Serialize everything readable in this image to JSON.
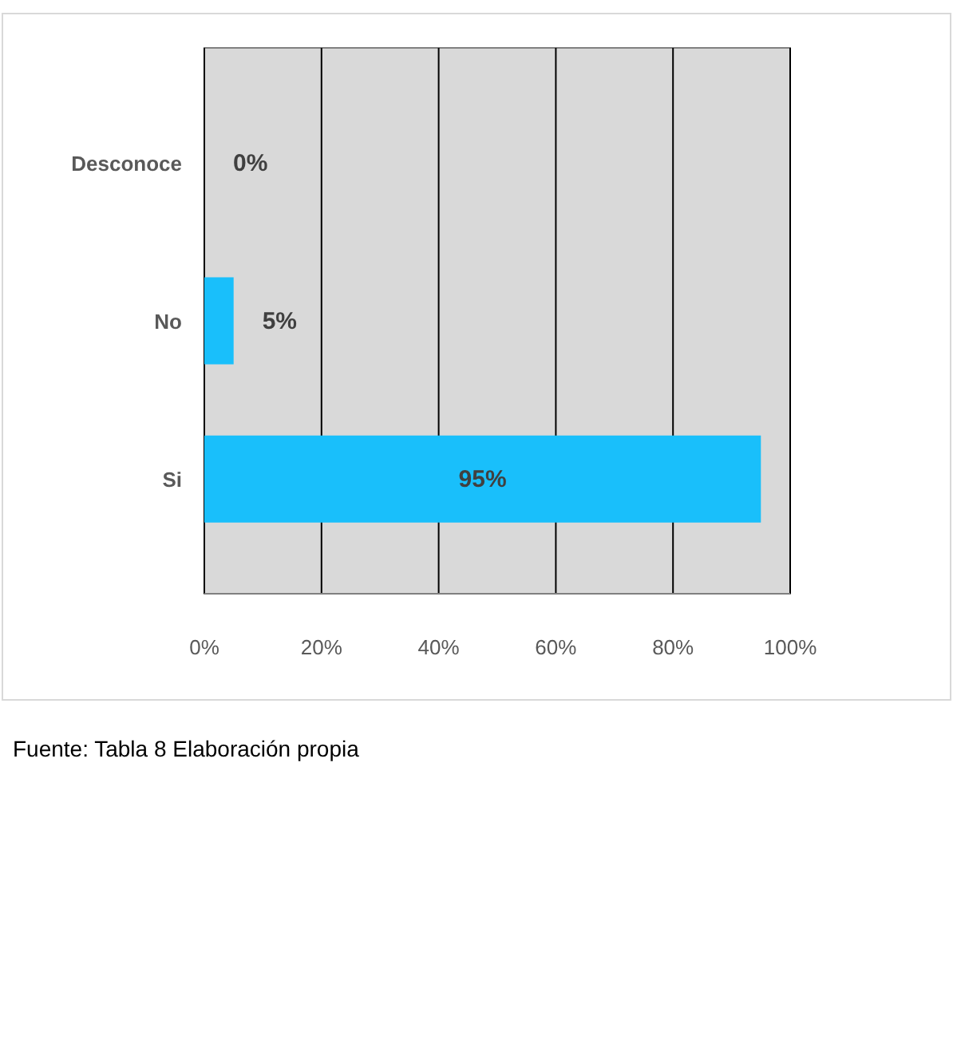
{
  "chart_data": {
    "type": "bar",
    "orientation": "horizontal",
    "categories": [
      "Desconoce",
      "No",
      "Si"
    ],
    "values": [
      0,
      5,
      95
    ],
    "color": "#19bffb",
    "value_labels": [
      "0%",
      "5%",
      "95%"
    ],
    "xlim": [
      0,
      100
    ],
    "xticks": [
      {
        "value": 0,
        "label": "0%"
      },
      {
        "value": 20,
        "label": "20%"
      },
      {
        "value": 40,
        "label": "40%"
      },
      {
        "value": 60,
        "label": "60%"
      },
      {
        "value": 80,
        "label": "80%"
      },
      {
        "value": 100,
        "label": "100%"
      }
    ],
    "grid": "x",
    "annotations": [
      "Fuente: Tabla 8 Elaboración propia"
    ]
  }
}
